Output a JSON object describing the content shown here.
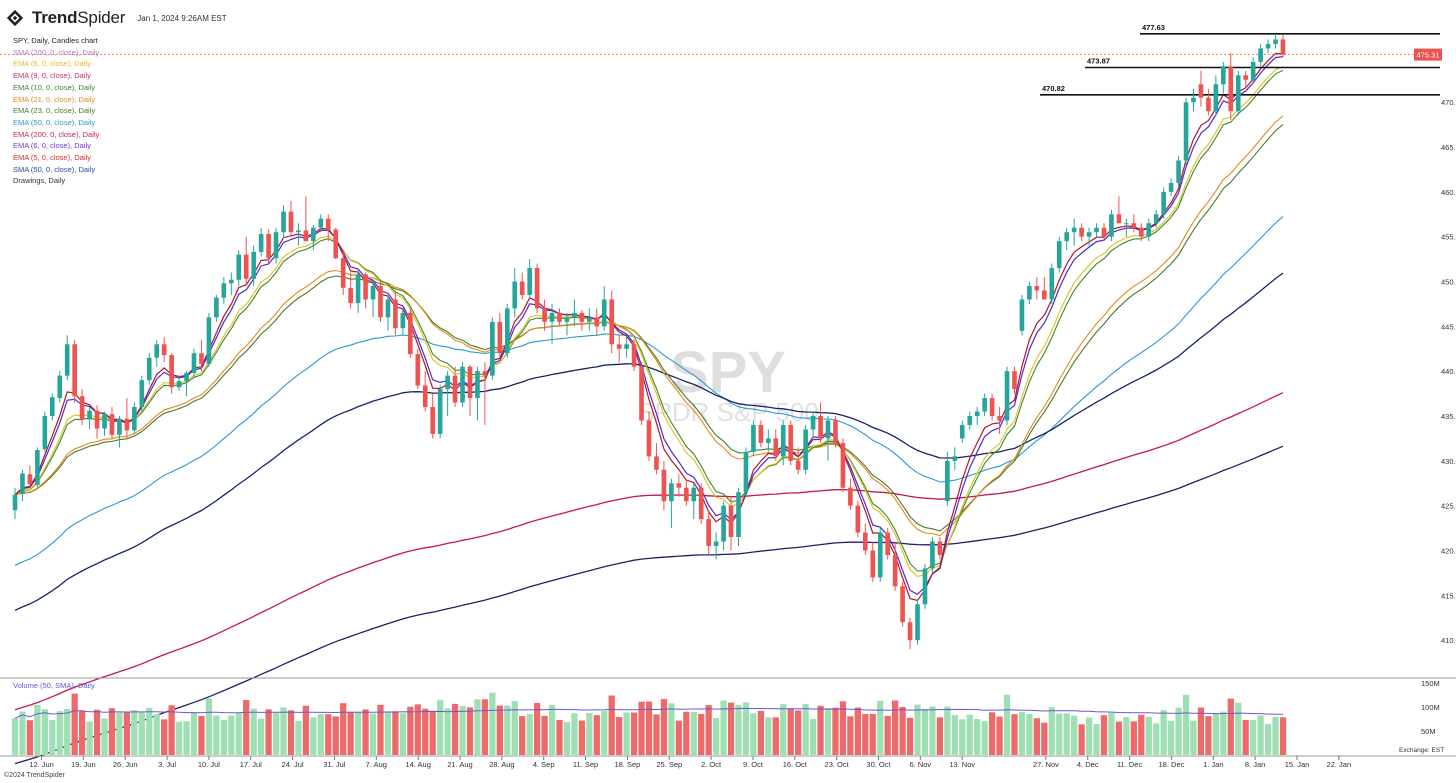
{
  "header": {
    "brand_bold": "Trend",
    "brand_thin": "Spider",
    "timestamp": "Jan 1, 2024 9:26AM EST"
  },
  "legend": {
    "title": "SPY, Daily, Candles chart",
    "items": [
      {
        "label": "SMA (200, 0, close), Daily",
        "color": "#b07ac8"
      },
      {
        "label": "EMA (6, 0, close), Daily",
        "color": "#e0c020"
      },
      {
        "label": "EMA (9, 0, close), Daily",
        "color": "#c0306a"
      },
      {
        "label": "EMA (10, 0, close), Daily",
        "color": "#3a8a2a"
      },
      {
        "label": "EMA (21, 0, close), Daily",
        "color": "#e58a1a"
      },
      {
        "label": "EMA (23, 0, close), Daily",
        "color": "#4a7a2a"
      },
      {
        "label": "EMA (50, 0, close), Daily",
        "color": "#2a9ad0"
      },
      {
        "label": "EMA (200, 0, close), Daily",
        "color": "#d0205a"
      },
      {
        "label": "EMA (6, 0, close), Daily",
        "color": "#6a3ad0"
      },
      {
        "label": "EMA (5, 0, close), Daily",
        "color": "#d03030"
      },
      {
        "label": "SMA (50, 0, close), Daily",
        "color": "#2a4aa0"
      },
      {
        "label": "Drawings, Daily",
        "color": "#333333"
      }
    ],
    "volume_label": "Volume (50, SMA), Daily"
  },
  "watermark": {
    "symbol": "SPY",
    "name": "SPDR S&P 500"
  },
  "footer": "©2024 TrendSpider",
  "exchange_label": "Exchange: EST",
  "colors": {
    "up": "#26a69a",
    "down": "#ef5350",
    "vol_up": "#9ee0b4",
    "vol_down": "#ec6a6a"
  },
  "chart_data": {
    "type": "candlestick",
    "price_axis": {
      "ticks": [
        "470.00",
        "465.00",
        "460.00",
        "455.00",
        "450.00",
        "445.00",
        "440.00",
        "435.00",
        "430.00",
        "425.00",
        "420.00",
        "415.00",
        "410.00"
      ],
      "ylim": [
        406,
        478.5
      ]
    },
    "volume_axis": {
      "ticks": [
        "150M",
        "100M",
        "50M"
      ],
      "ylim": [
        0,
        150
      ]
    },
    "last_price": "475.31",
    "horizontal_levels": [
      {
        "label": "477.63",
        "value": 477.63
      },
      {
        "label": "473.87",
        "value": 473.87
      },
      {
        "label": "470.82",
        "value": 470.82
      }
    ],
    "x_tick_labels": [
      "12. Jun",
      "19. Jun",
      "26. Jun",
      "3. Jul",
      "10. Jul",
      "17. Jul",
      "24. Jul",
      "31. Jul",
      "7. Aug",
      "14. Aug",
      "21. Aug",
      "28. Aug",
      "4. Sep",
      "11. Sep",
      "18. Sep",
      "25. Sep",
      "2. Oct",
      "9. Oct",
      "16. Oct",
      "23. Oct",
      "30. Oct",
      "6. Nov",
      "13. Nov",
      "27. Nov",
      "4. Dec",
      "11. Dec",
      "18. Dec",
      "1. Jan",
      "8. Jan",
      "15. Jan",
      "22. Jan"
    ],
    "bar_index_range": [
      0,
      157
    ],
    "candles": [
      {
        "o": 424.5,
        "h": 427.0,
        "l": 423.5,
        "c": 426.2
      },
      {
        "o": 426.3,
        "h": 429.0,
        "l": 425.5,
        "c": 428.6
      },
      {
        "o": 428.5,
        "h": 429.5,
        "l": 427.0,
        "c": 427.4
      },
      {
        "o": 427.3,
        "h": 431.5,
        "l": 427.0,
        "c": 431.2
      },
      {
        "o": 431.3,
        "h": 435.5,
        "l": 431.0,
        "c": 435.0
      },
      {
        "o": 435.0,
        "h": 437.5,
        "l": 434.5,
        "c": 437.1
      },
      {
        "o": 437.0,
        "h": 440.0,
        "l": 436.5,
        "c": 439.5
      },
      {
        "o": 439.5,
        "h": 444.0,
        "l": 439.0,
        "c": 443.0
      },
      {
        "o": 443.0,
        "h": 443.5,
        "l": 436.5,
        "c": 437.2
      },
      {
        "o": 437.2,
        "h": 438.0,
        "l": 434.0,
        "c": 434.6
      },
      {
        "o": 434.6,
        "h": 436.0,
        "l": 433.5,
        "c": 435.6
      },
      {
        "o": 435.6,
        "h": 436.2,
        "l": 432.5,
        "c": 433.6
      },
      {
        "o": 433.6,
        "h": 435.5,
        "l": 432.8,
        "c": 435.2
      },
      {
        "o": 435.2,
        "h": 436.0,
        "l": 432.5,
        "c": 432.9
      },
      {
        "o": 432.9,
        "h": 435.0,
        "l": 431.5,
        "c": 434.7
      },
      {
        "o": 434.7,
        "h": 437.0,
        "l": 432.5,
        "c": 433.4
      },
      {
        "o": 433.4,
        "h": 436.5,
        "l": 433.0,
        "c": 436.0
      },
      {
        "o": 436.0,
        "h": 439.5,
        "l": 435.5,
        "c": 439.0
      },
      {
        "o": 439.0,
        "h": 442.0,
        "l": 438.5,
        "c": 441.5
      },
      {
        "o": 441.5,
        "h": 443.5,
        "l": 440.5,
        "c": 443.0
      },
      {
        "o": 443.0,
        "h": 443.8,
        "l": 441.0,
        "c": 441.8
      },
      {
        "o": 441.8,
        "h": 442.0,
        "l": 437.5,
        "c": 438.2
      },
      {
        "o": 438.2,
        "h": 439.5,
        "l": 437.8,
        "c": 438.9
      },
      {
        "o": 438.9,
        "h": 440.0,
        "l": 437.2,
        "c": 439.8
      },
      {
        "o": 439.8,
        "h": 442.5,
        "l": 439.2,
        "c": 442.0
      },
      {
        "o": 442.0,
        "h": 443.5,
        "l": 440.0,
        "c": 440.8
      },
      {
        "o": 440.8,
        "h": 446.5,
        "l": 440.5,
        "c": 446.0
      },
      {
        "o": 446.0,
        "h": 448.5,
        "l": 445.5,
        "c": 448.2
      },
      {
        "o": 448.2,
        "h": 450.5,
        "l": 447.5,
        "c": 449.8
      },
      {
        "o": 449.8,
        "h": 451.0,
        "l": 448.5,
        "c": 450.2
      },
      {
        "o": 450.2,
        "h": 453.5,
        "l": 449.5,
        "c": 453.0
      },
      {
        "o": 453.0,
        "h": 455.0,
        "l": 449.5,
        "c": 450.3
      },
      {
        "o": 450.3,
        "h": 454.0,
        "l": 449.5,
        "c": 453.3
      },
      {
        "o": 453.3,
        "h": 456.0,
        "l": 452.8,
        "c": 455.3
      },
      {
        "o": 455.3,
        "h": 455.8,
        "l": 452.0,
        "c": 452.6
      },
      {
        "o": 452.6,
        "h": 456.0,
        "l": 452.0,
        "c": 455.5
      },
      {
        "o": 455.5,
        "h": 458.5,
        "l": 454.8,
        "c": 457.8
      },
      {
        "o": 457.8,
        "h": 459.0,
        "l": 455.0,
        "c": 455.5
      },
      {
        "o": 455.5,
        "h": 456.5,
        "l": 454.0,
        "c": 455.7
      },
      {
        "o": 455.7,
        "h": 459.5,
        "l": 455.0,
        "c": 454.5
      },
      {
        "o": 454.5,
        "h": 456.3,
        "l": 453.5,
        "c": 456.0
      },
      {
        "o": 456.0,
        "h": 457.5,
        "l": 455.5,
        "c": 457.0
      },
      {
        "o": 457.0,
        "h": 457.5,
        "l": 454.5,
        "c": 455.8
      },
      {
        "o": 455.8,
        "h": 456.0,
        "l": 452.5,
        "c": 452.6
      },
      {
        "o": 452.6,
        "h": 453.5,
        "l": 448.5,
        "c": 449.3
      },
      {
        "o": 449.3,
        "h": 451.0,
        "l": 447.0,
        "c": 447.6
      },
      {
        "o": 447.6,
        "h": 451.5,
        "l": 446.5,
        "c": 450.8
      },
      {
        "o": 450.8,
        "h": 451.0,
        "l": 447.0,
        "c": 448.0
      },
      {
        "o": 448.0,
        "h": 450.0,
        "l": 446.0,
        "c": 449.5
      },
      {
        "o": 449.5,
        "h": 450.0,
        "l": 445.5,
        "c": 446.0
      },
      {
        "o": 446.0,
        "h": 448.5,
        "l": 444.5,
        "c": 448.0
      },
      {
        "o": 448.0,
        "h": 449.0,
        "l": 444.0,
        "c": 444.8
      },
      {
        "o": 444.8,
        "h": 447.0,
        "l": 444.0,
        "c": 446.5
      },
      {
        "o": 446.5,
        "h": 447.0,
        "l": 441.5,
        "c": 441.9
      },
      {
        "o": 441.9,
        "h": 442.5,
        "l": 438.0,
        "c": 438.4
      },
      {
        "o": 438.4,
        "h": 440.0,
        "l": 435.5,
        "c": 436.0
      },
      {
        "o": 436.0,
        "h": 437.5,
        "l": 432.5,
        "c": 433.0
      },
      {
        "o": 433.0,
        "h": 438.5,
        "l": 432.5,
        "c": 438.0
      },
      {
        "o": 438.0,
        "h": 440.0,
        "l": 435.0,
        "c": 439.5
      },
      {
        "o": 439.5,
        "h": 440.5,
        "l": 436.0,
        "c": 436.5
      },
      {
        "o": 436.5,
        "h": 441.0,
        "l": 436.0,
        "c": 440.5
      },
      {
        "o": 440.5,
        "h": 440.7,
        "l": 435.0,
        "c": 437.0
      },
      {
        "o": 437.0,
        "h": 440.5,
        "l": 434.5,
        "c": 440.0
      },
      {
        "o": 440.0,
        "h": 441.0,
        "l": 434.0,
        "c": 439.5
      },
      {
        "o": 439.5,
        "h": 446.0,
        "l": 439.0,
        "c": 445.5
      },
      {
        "o": 445.5,
        "h": 446.5,
        "l": 441.5,
        "c": 442.0
      },
      {
        "o": 442.0,
        "h": 447.5,
        "l": 441.5,
        "c": 447.0
      },
      {
        "o": 447.0,
        "h": 451.5,
        "l": 446.0,
        "c": 450.0
      },
      {
        "o": 450.0,
        "h": 451.0,
        "l": 448.0,
        "c": 448.5
      },
      {
        "o": 448.5,
        "h": 452.5,
        "l": 448.0,
        "c": 451.5
      },
      {
        "o": 451.5,
        "h": 452.0,
        "l": 446.5,
        "c": 447.0
      },
      {
        "o": 447.0,
        "h": 448.0,
        "l": 444.5,
        "c": 445.5
      },
      {
        "o": 445.5,
        "h": 447.5,
        "l": 443.0,
        "c": 446.5
      },
      {
        "o": 446.5,
        "h": 447.0,
        "l": 445.0,
        "c": 445.5
      },
      {
        "o": 445.5,
        "h": 446.5,
        "l": 444.0,
        "c": 446.0
      },
      {
        "o": 446.0,
        "h": 448.0,
        "l": 445.0,
        "c": 446.5
      },
      {
        "o": 446.5,
        "h": 446.8,
        "l": 444.5,
        "c": 445.5
      },
      {
        "o": 445.5,
        "h": 447.0,
        "l": 444.5,
        "c": 446.0
      },
      {
        "o": 446.0,
        "h": 447.0,
        "l": 444.0,
        "c": 445.0
      },
      {
        "o": 445.0,
        "h": 449.5,
        "l": 444.5,
        "c": 448.0
      },
      {
        "o": 448.0,
        "h": 449.0,
        "l": 442.0,
        "c": 443.0
      },
      {
        "o": 443.0,
        "h": 444.0,
        "l": 441.0,
        "c": 442.5
      },
      {
        "o": 442.5,
        "h": 444.0,
        "l": 441.5,
        "c": 443.0
      },
      {
        "o": 443.0,
        "h": 443.5,
        "l": 440.0,
        "c": 440.5
      },
      {
        "o": 440.5,
        "h": 441.0,
        "l": 434.0,
        "c": 434.5
      },
      {
        "o": 434.5,
        "h": 435.5,
        "l": 430.0,
        "c": 430.5
      },
      {
        "o": 430.5,
        "h": 432.0,
        "l": 428.5,
        "c": 429.0
      },
      {
        "o": 429.0,
        "h": 430.0,
        "l": 424.5,
        "c": 425.5
      },
      {
        "o": 425.5,
        "h": 428.0,
        "l": 422.5,
        "c": 427.5
      },
      {
        "o": 427.5,
        "h": 428.5,
        "l": 426.0,
        "c": 427.0
      },
      {
        "o": 427.0,
        "h": 428.0,
        "l": 425.0,
        "c": 425.5
      },
      {
        "o": 425.5,
        "h": 427.5,
        "l": 423.5,
        "c": 427.0
      },
      {
        "o": 427.0,
        "h": 427.5,
        "l": 423.0,
        "c": 423.5
      },
      {
        "o": 423.5,
        "h": 424.5,
        "l": 419.5,
        "c": 420.5
      },
      {
        "o": 420.5,
        "h": 422.0,
        "l": 419.0,
        "c": 421.0
      },
      {
        "o": 421.0,
        "h": 425.5,
        "l": 420.0,
        "c": 425.0
      },
      {
        "o": 425.0,
        "h": 426.0,
        "l": 420.0,
        "c": 421.5
      },
      {
        "o": 421.5,
        "h": 427.0,
        "l": 420.5,
        "c": 426.5
      },
      {
        "o": 426.5,
        "h": 431.5,
        "l": 426.0,
        "c": 431.0
      },
      {
        "o": 431.0,
        "h": 434.5,
        "l": 430.5,
        "c": 434.0
      },
      {
        "o": 434.0,
        "h": 434.5,
        "l": 431.5,
        "c": 432.0
      },
      {
        "o": 432.0,
        "h": 433.5,
        "l": 431.0,
        "c": 432.5
      },
      {
        "o": 432.5,
        "h": 433.5,
        "l": 430.0,
        "c": 430.5
      },
      {
        "o": 430.5,
        "h": 434.5,
        "l": 429.5,
        "c": 434.0
      },
      {
        "o": 434.0,
        "h": 434.5,
        "l": 429.5,
        "c": 430.0
      },
      {
        "o": 430.0,
        "h": 431.5,
        "l": 428.5,
        "c": 429.0
      },
      {
        "o": 429.0,
        "h": 434.0,
        "l": 428.5,
        "c": 433.5
      },
      {
        "o": 433.5,
        "h": 435.5,
        "l": 432.5,
        "c": 435.0
      },
      {
        "o": 435.0,
        "h": 436.5,
        "l": 432.0,
        "c": 432.5
      },
      {
        "o": 432.5,
        "h": 435.0,
        "l": 430.0,
        "c": 434.5
      },
      {
        "o": 434.5,
        "h": 435.0,
        "l": 431.5,
        "c": 432.0
      },
      {
        "o": 432.0,
        "h": 432.5,
        "l": 426.5,
        "c": 427.0
      },
      {
        "o": 427.0,
        "h": 428.0,
        "l": 424.5,
        "c": 425.0
      },
      {
        "o": 425.0,
        "h": 425.5,
        "l": 421.5,
        "c": 422.0
      },
      {
        "o": 422.0,
        "h": 423.0,
        "l": 419.5,
        "c": 420.0
      },
      {
        "o": 420.0,
        "h": 421.0,
        "l": 416.5,
        "c": 417.0
      },
      {
        "o": 417.0,
        "h": 422.5,
        "l": 416.5,
        "c": 422.0
      },
      {
        "o": 422.0,
        "h": 422.5,
        "l": 419.0,
        "c": 419.5
      },
      {
        "o": 419.5,
        "h": 421.0,
        "l": 415.5,
        "c": 416.0
      },
      {
        "o": 416.0,
        "h": 416.5,
        "l": 411.5,
        "c": 412.0
      },
      {
        "o": 412.0,
        "h": 412.5,
        "l": 409.0,
        "c": 410.0
      },
      {
        "o": 410.0,
        "h": 414.5,
        "l": 409.5,
        "c": 414.0
      },
      {
        "o": 414.0,
        "h": 418.5,
        "l": 413.5,
        "c": 418.0
      },
      {
        "o": 418.0,
        "h": 421.5,
        "l": 417.5,
        "c": 421.0
      },
      {
        "o": 421.0,
        "h": 421.5,
        "l": 419.0,
        "c": 419.5
      },
      {
        "o": 425.5,
        "h": 431.0,
        "l": 425.0,
        "c": 430.0
      },
      {
        "o": 430.0,
        "h": 431.5,
        "l": 429.0,
        "c": 430.5
      },
      {
        "o": 432.5,
        "h": 434.5,
        "l": 432.0,
        "c": 434.0
      },
      {
        "o": 434.0,
        "h": 435.5,
        "l": 433.5,
        "c": 435.0
      },
      {
        "o": 435.0,
        "h": 436.0,
        "l": 434.0,
        "c": 435.5
      },
      {
        "o": 435.5,
        "h": 437.5,
        "l": 435.0,
        "c": 437.0
      },
      {
        "o": 437.0,
        "h": 437.5,
        "l": 434.5,
        "c": 435.0
      },
      {
        "o": 435.0,
        "h": 436.0,
        "l": 433.0,
        "c": 434.5
      },
      {
        "o": 434.5,
        "h": 440.5,
        "l": 434.0,
        "c": 440.0
      },
      {
        "o": 440.0,
        "h": 440.5,
        "l": 437.5,
        "c": 438.0
      },
      {
        "o": 444.5,
        "h": 448.5,
        "l": 444.0,
        "c": 448.0
      },
      {
        "o": 448.0,
        "h": 450.0,
        "l": 447.5,
        "c": 449.5
      },
      {
        "o": 449.5,
        "h": 450.5,
        "l": 448.0,
        "c": 449.0
      },
      {
        "o": 449.0,
        "h": 450.5,
        "l": 448.0,
        "c": 448.0
      },
      {
        "o": 448.0,
        "h": 452.0,
        "l": 447.5,
        "c": 451.5
      },
      {
        "o": 451.5,
        "h": 455.0,
        "l": 451.0,
        "c": 454.5
      },
      {
        "o": 454.5,
        "h": 456.0,
        "l": 453.5,
        "c": 455.5
      },
      {
        "o": 455.5,
        "h": 457.0,
        "l": 454.0,
        "c": 456.0
      },
      {
        "o": 456.0,
        "h": 456.5,
        "l": 454.5,
        "c": 455.0
      },
      {
        "o": 455.0,
        "h": 456.0,
        "l": 454.0,
        "c": 455.5
      },
      {
        "o": 455.5,
        "h": 456.5,
        "l": 455.0,
        "c": 456.0
      },
      {
        "o": 456.0,
        "h": 456.5,
        "l": 454.5,
        "c": 455.0
      },
      {
        "o": 455.0,
        "h": 458.0,
        "l": 454.5,
        "c": 457.5
      },
      {
        "o": 457.5,
        "h": 459.5,
        "l": 457.0,
        "c": 456.5
      },
      {
        "o": 456.5,
        "h": 457.0,
        "l": 455.0,
        "c": 456.5
      },
      {
        "o": 456.5,
        "h": 457.5,
        "l": 455.5,
        "c": 456.0
      },
      {
        "o": 456.0,
        "h": 456.5,
        "l": 454.5,
        "c": 455.0
      },
      {
        "o": 455.0,
        "h": 457.0,
        "l": 454.5,
        "c": 456.5
      },
      {
        "o": 456.5,
        "h": 458.0,
        "l": 456.0,
        "c": 457.5
      },
      {
        "o": 457.5,
        "h": 460.5,
        "l": 457.0,
        "c": 460.0
      },
      {
        "o": 460.0,
        "h": 461.5,
        "l": 459.5,
        "c": 461.0
      },
      {
        "o": 461.0,
        "h": 464.0,
        "l": 460.5,
        "c": 463.5
      },
      {
        "o": 463.5,
        "h": 470.5,
        "l": 463.0,
        "c": 470.0
      },
      {
        "o": 470.0,
        "h": 471.5,
        "l": 469.0,
        "c": 470.5
      },
      {
        "o": 472.0,
        "h": 473.5,
        "l": 469.5,
        "c": 470.5
      },
      {
        "o": 470.5,
        "h": 471.5,
        "l": 468.5,
        "c": 469.0
      },
      {
        "o": 469.0,
        "h": 473.0,
        "l": 468.5,
        "c": 472.0
      },
      {
        "o": 472.0,
        "h": 474.5,
        "l": 471.0,
        "c": 474.0
      },
      {
        "o": 474.0,
        "h": 475.5,
        "l": 468.0,
        "c": 469.0
      },
      {
        "o": 469.0,
        "h": 473.5,
        "l": 468.5,
        "c": 473.0
      },
      {
        "o": 473.0,
        "h": 473.5,
        "l": 471.5,
        "c": 472.5
      },
      {
        "o": 472.5,
        "h": 475.0,
        "l": 472.0,
        "c": 474.5
      },
      {
        "o": 474.5,
        "h": 476.5,
        "l": 474.0,
        "c": 476.0
      },
      {
        "o": 476.0,
        "h": 477.0,
        "l": 475.5,
        "c": 476.5
      },
      {
        "o": 476.5,
        "h": 477.63,
        "l": 476.0,
        "c": 477.0
      },
      {
        "o": 477.0,
        "h": 477.5,
        "l": 475.0,
        "c": 475.31
      }
    ],
    "volume_series_name": "Volume (50, SMA), Daily"
  }
}
